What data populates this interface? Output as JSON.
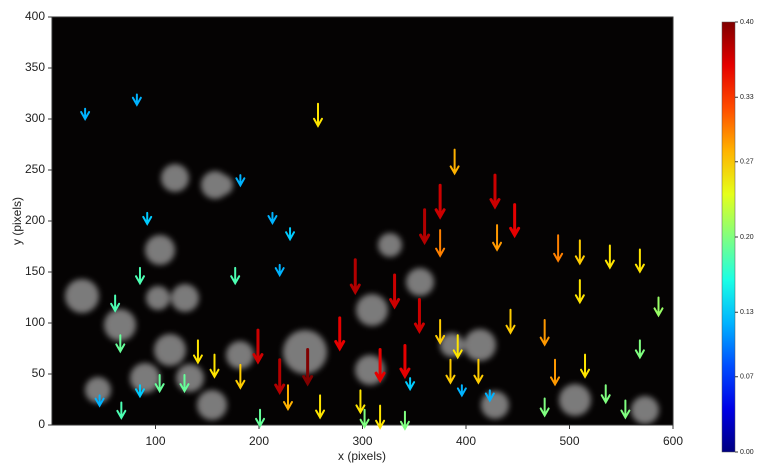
{
  "chart_data": {
    "type": "quiver",
    "xlabel": "x (pixels)",
    "ylabel": "y (pixels)",
    "xlim": [
      0,
      600
    ],
    "xticks": [
      100,
      200,
      300,
      400,
      500,
      600
    ],
    "ylim": [
      0,
      400
    ],
    "yticks": [
      0,
      50,
      100,
      150,
      200,
      250,
      300,
      350,
      400
    ],
    "colormap": "jet",
    "clim": [
      0,
      0.4
    ],
    "cticks": [
      {
        "value": 0,
        "label": "0.00"
      },
      {
        "value": 0.07,
        "label": "0.07"
      },
      {
        "value": 0.13,
        "label": "0.13"
      },
      {
        "value": 0.2,
        "label": "0.20"
      },
      {
        "value": 0.27,
        "label": "0.27"
      },
      {
        "value": 0.33,
        "label": "0.33"
      },
      {
        "value": 0.4,
        "label": "0.40"
      }
    ],
    "x": [
      32,
      82,
      257,
      389,
      428,
      375,
      447,
      360,
      430,
      375,
      489,
      510,
      539,
      568,
      182,
      92,
      213,
      230,
      220,
      85,
      61,
      177,
      293,
      331,
      355,
      510,
      586,
      375,
      392,
      476,
      443,
      278,
      199,
      247,
      220,
      317,
      341,
      141,
      157,
      182,
      66,
      104,
      228,
      259,
      298,
      385,
      412,
      486,
      515,
      423,
      396,
      346,
      46,
      67,
      85,
      476,
      535,
      554,
      201,
      341,
      317,
      128,
      302,
      568
    ],
    "y": [
      310,
      324,
      315,
      270,
      245,
      235,
      216,
      211,
      196,
      191,
      186,
      181,
      176,
      172,
      245,
      208,
      208,
      193,
      157,
      154,
      127,
      154,
      162,
      147,
      123,
      142,
      125,
      103,
      88,
      103,
      113,
      105,
      93,
      74,
      64,
      74,
      78,
      83,
      69,
      59,
      88,
      49,
      39,
      29,
      34,
      64,
      64,
      64,
      69,
      34,
      39,
      46,
      29,
      22,
      39,
      26,
      39,
      24,
      15,
      13,
      19,
      49,
      15,
      83
    ],
    "speed": [
      0.12,
      0.12,
      0.26,
      0.28,
      0.37,
      0.37,
      0.36,
      0.38,
      0.29,
      0.3,
      0.3,
      0.27,
      0.26,
      0.26,
      0.12,
      0.13,
      0.12,
      0.13,
      0.12,
      0.18,
      0.18,
      0.18,
      0.38,
      0.37,
      0.37,
      0.26,
      0.21,
      0.27,
      0.26,
      0.29,
      0.27,
      0.36,
      0.37,
      0.4,
      0.38,
      0.36,
      0.36,
      0.26,
      0.26,
      0.27,
      0.19,
      0.19,
      0.28,
      0.26,
      0.26,
      0.27,
      0.27,
      0.29,
      0.26,
      0.12,
      0.12,
      0.13,
      0.12,
      0.18,
      0.13,
      0.2,
      0.2,
      0.2,
      0.19,
      0.2,
      0.26,
      0.19,
      0.2,
      0.2
    ]
  }
}
